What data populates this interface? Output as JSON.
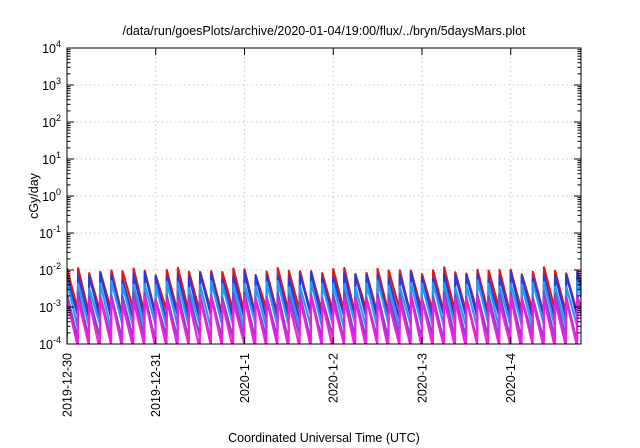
{
  "chart_data": {
    "type": "line",
    "title": "/data/run/goesPlots/archive/2020-01-04/19:00/flux/../bryn/5daysMars.plot",
    "xlabel": "Coordinated Universal Time (UTC)",
    "ylabel": "cGy/day",
    "yscale": "log",
    "ylim": [
      0.0001,
      10000
    ],
    "y_ticks": [
      {
        "base": "10",
        "exp": "-4",
        "value": 0.0001
      },
      {
        "base": "10",
        "exp": "-3",
        "value": 0.001
      },
      {
        "base": "10",
        "exp": "-2",
        "value": 0.01
      },
      {
        "base": "10",
        "exp": "-1",
        "value": 0.1
      },
      {
        "base": "10",
        "exp": "0",
        "value": 1
      },
      {
        "base": "10",
        "exp": "1",
        "value": 10
      },
      {
        "base": "10",
        "exp": "2",
        "value": 100
      },
      {
        "base": "10",
        "exp": "3",
        "value": 1000
      },
      {
        "base": "10",
        "exp": "4",
        "value": 10000
      }
    ],
    "xlim": [
      "2019-12-30",
      "2020-01-04 19:00"
    ],
    "x_ticks": [
      "2019-12-30",
      "2019-12-31",
      "2020-1-1",
      "2020-1-2",
      "2020-1-3",
      "2020-1-4"
    ],
    "grid": true,
    "legend": "none",
    "series_style": "sawtooth",
    "sawtooth_period_hours": 3,
    "series": [
      {
        "color": "#e8141c",
        "peak": 0.0095,
        "trough": 0.00075
      },
      {
        "color": "#1f3ee0",
        "peak": 0.0072,
        "trough": 0.00052
      },
      {
        "color": "#2a9af0",
        "peak": 0.0042,
        "trough": 0.00031
      },
      {
        "color": "#7a48c8",
        "peak": 0.0021,
        "trough": 0.00014
      },
      {
        "color": "#f01ee0",
        "peak": 0.0016,
        "trough": 8.5e-05
      }
    ]
  }
}
